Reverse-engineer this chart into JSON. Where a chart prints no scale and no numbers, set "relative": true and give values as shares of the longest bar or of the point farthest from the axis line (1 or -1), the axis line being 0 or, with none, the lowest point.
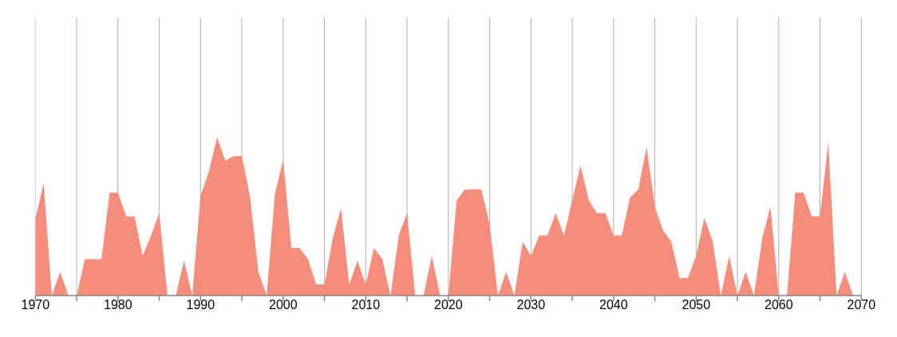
{
  "chart_data": {
    "type": "area",
    "relative": true,
    "color": "#f58d7d",
    "x": [
      1970,
      1971,
      1972,
      1973,
      1974,
      1975,
      1976,
      1977,
      1978,
      1979,
      1980,
      1981,
      1982,
      1983,
      1984,
      1985,
      1986,
      1987,
      1988,
      1989,
      1990,
      1991,
      1992,
      1993,
      1994,
      1995,
      1996,
      1997,
      1998,
      1999,
      2000,
      2001,
      2002,
      2003,
      2004,
      2005,
      2006,
      2007,
      2008,
      2009,
      2010,
      2011,
      2012,
      2013,
      2014,
      2015,
      2016,
      2017,
      2018,
      2019,
      2020,
      2021,
      2022,
      2023,
      2024,
      2025,
      2026,
      2027,
      2028,
      2029,
      2030,
      2031,
      2032,
      2033,
      2034,
      2035,
      2036,
      2037,
      2038,
      2039,
      2040,
      2041,
      2042,
      2043,
      2044,
      2045,
      2046,
      2047,
      2048,
      2049,
      2050,
      2051,
      2052,
      2053,
      2054,
      2055,
      2056,
      2057,
      2058,
      2059,
      2060,
      2061,
      2062,
      2063,
      2064,
      2065,
      2066,
      2067,
      2068,
      2069
    ],
    "values": [
      0.48,
      0.71,
      0,
      0.15,
      0,
      0,
      0.23,
      0.23,
      0.23,
      0.65,
      0.65,
      0.5,
      0.5,
      0.25,
      0.38,
      0.52,
      0,
      0,
      0.22,
      0,
      0.63,
      0.78,
      1,
      0.85,
      0.88,
      0.88,
      0.62,
      0.15,
      0,
      0.64,
      0.86,
      0.3,
      0.3,
      0.23,
      0.07,
      0.07,
      0.36,
      0.55,
      0.07,
      0.22,
      0.07,
      0.3,
      0.23,
      0,
      0.38,
      0.52,
      0,
      0,
      0.25,
      0,
      0,
      0.6,
      0.67,
      0.67,
      0.67,
      0.45,
      0,
      0.15,
      0,
      0.34,
      0.25,
      0.38,
      0.38,
      0.52,
      0.38,
      0.6,
      0.82,
      0.6,
      0.52,
      0.52,
      0.38,
      0.38,
      0.62,
      0.67,
      0.94,
      0.56,
      0.41,
      0.34,
      0.11,
      0.11,
      0.25,
      0.49,
      0.34,
      0,
      0.25,
      0,
      0.15,
      0,
      0.36,
      0.56,
      0,
      0,
      0.65,
      0.65,
      0.5,
      0.5,
      0.97,
      0,
      0.15,
      0
    ],
    "xlim": [
      1970,
      2070
    ],
    "xticks": [
      1970,
      {
        "value": 1975,
        "label": null
      },
      1980,
      {
        "value": 1985,
        "label": null
      },
      1990,
      {
        "value": 1995,
        "label": null
      },
      2000,
      {
        "value": 2005,
        "label": null
      },
      2010,
      {
        "value": 2015,
        "label": null
      },
      2020,
      {
        "value": 2025,
        "label": null
      },
      2030,
      {
        "value": 2035,
        "label": null
      },
      2040,
      {
        "value": 2045,
        "label": null
      },
      2050,
      {
        "value": 2055,
        "label": null
      },
      2060,
      {
        "value": 2065,
        "label": null
      },
      2070
    ],
    "grid": "x"
  }
}
